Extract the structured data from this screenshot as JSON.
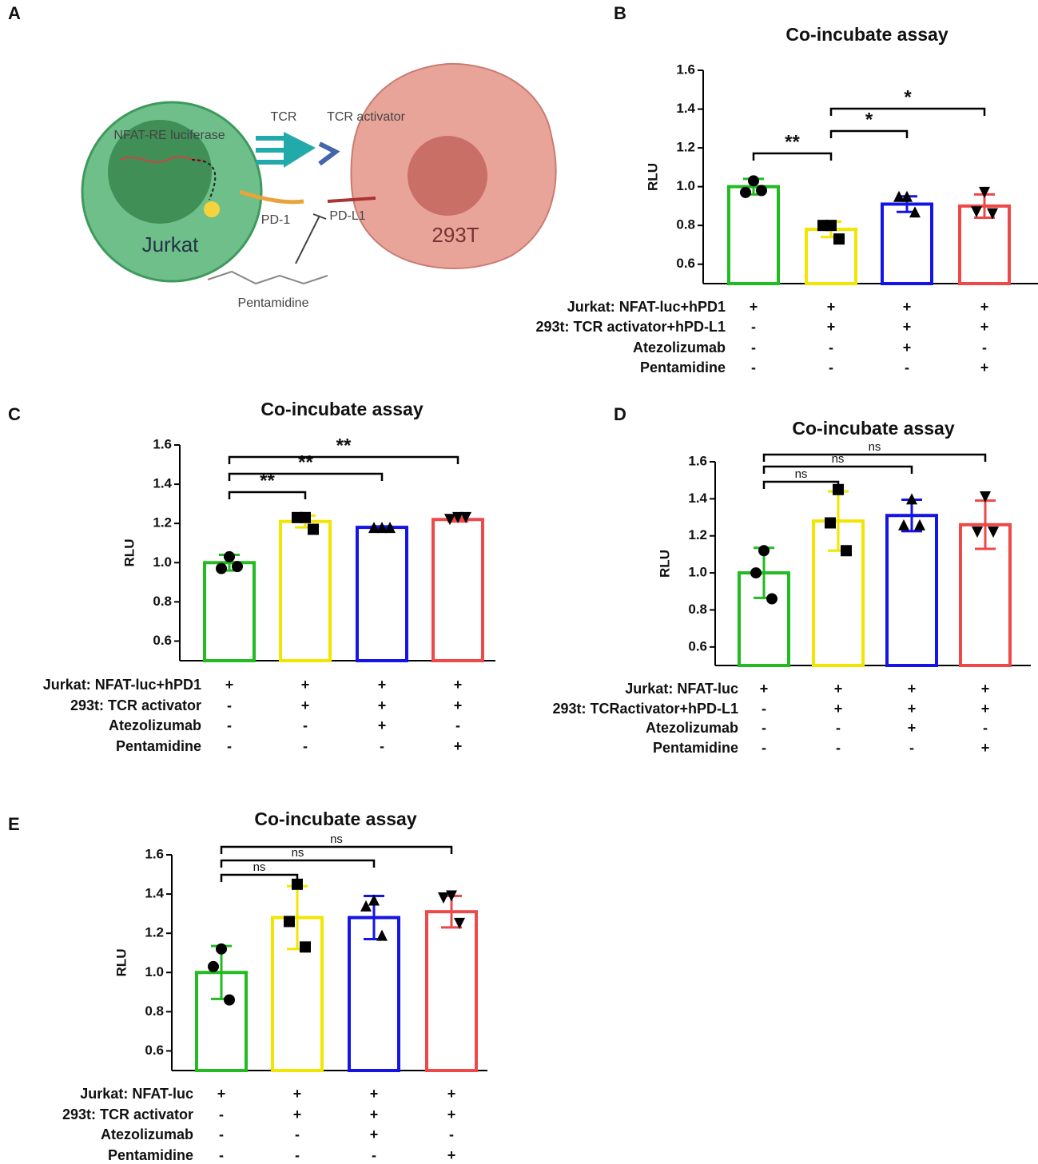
{
  "diagram": {
    "panel": "A",
    "labels": {
      "tcr": "TCR",
      "tcr_activator": "TCR activator",
      "luciferase": "NFAT-RE luciferase",
      "pd1": "PD-1",
      "pdl1": "PD-L1",
      "jurkat": "Jurkat",
      "cell293t": "293T",
      "drug": "Pentamidine"
    }
  },
  "chart_data": [
    {
      "type": "bar",
      "panel": "B",
      "title": "Co-incubate assay",
      "ylabel": "RLU",
      "ylim": [
        0.5,
        1.6
      ],
      "yticks": [
        0.6,
        0.8,
        {
          "value": 1,
          "label": "1.0"
        },
        1.2,
        1.4,
        1.6
      ],
      "colors": [
        "#22bb22",
        "#f2e600",
        "#1414e6",
        "#ee4848"
      ],
      "markers": [
        "circle",
        "square",
        "triangle",
        "triangle-down"
      ],
      "series": [
        {
          "values": [
            1.0,
            0.78,
            0.91,
            0.9
          ],
          "errors": [
            0.04,
            0.04,
            0.04,
            0.06
          ],
          "points": [
            [
              1.03,
              0.97,
              0.98
            ],
            [
              0.8,
              0.8,
              0.73
            ],
            [
              0.95,
              0.95,
              0.87
            ],
            [
              0.97,
              0.87,
              0.86
            ]
          ]
        }
      ],
      "significance": [
        {
          "bars": [
            0,
            1
          ],
          "label": "**"
        },
        {
          "bars": [
            1,
            2
          ],
          "label": "*"
        },
        {
          "bars": [
            1,
            3
          ],
          "label": "*"
        }
      ],
      "conditions": [
        {
          "label": "Jurkat: NFAT-luc+hPD1",
          "signs": [
            "+",
            "+",
            "+",
            "+"
          ]
        },
        {
          "label": "293t: TCR activator+hPD-L1",
          "signs": [
            "-",
            "+",
            "+",
            "+"
          ]
        },
        {
          "label": "Atezolizumab",
          "signs": [
            "-",
            "-",
            "+",
            "-"
          ]
        },
        {
          "label": "Pentamidine",
          "signs": [
            "-",
            "-",
            "-",
            "+"
          ]
        }
      ]
    },
    {
      "type": "bar",
      "panel": "C",
      "title": "Co-incubate assay",
      "ylabel": "RLU",
      "ylim": [
        0.5,
        1.6
      ],
      "yticks": [
        0.6,
        0.8,
        {
          "value": 1,
          "label": "1.0"
        },
        1.2,
        1.4,
        1.6
      ],
      "colors": [
        "#22bb22",
        "#f2e600",
        "#1414e6",
        "#ee4848"
      ],
      "markers": [
        "circle",
        "square",
        "triangle",
        "triangle-down"
      ],
      "series": [
        {
          "values": [
            1.0,
            1.21,
            1.18,
            1.22
          ],
          "errors": [
            0.04,
            0.03,
            0.005,
            0.01
          ],
          "points": [
            [
              1.03,
              0.97,
              0.98
            ],
            [
              1.23,
              1.23,
              1.17
            ],
            [
              1.18,
              1.18,
              1.18
            ],
            [
              1.23,
              1.22,
              1.23
            ]
          ]
        }
      ],
      "significance": [
        {
          "bars": [
            0,
            1
          ],
          "label": "**"
        },
        {
          "bars": [
            0,
            2
          ],
          "label": "**"
        },
        {
          "bars": [
            0,
            3
          ],
          "label": "**"
        }
      ],
      "conditions": [
        {
          "label": "Jurkat: NFAT-luc+hPD1",
          "signs": [
            "+",
            "+",
            "+",
            "+"
          ]
        },
        {
          "label": "293t: TCR activator",
          "signs": [
            "-",
            "+",
            "+",
            "+"
          ]
        },
        {
          "label": "Atezolizumab",
          "signs": [
            "-",
            "-",
            "+",
            "-"
          ]
        },
        {
          "label": "Pentamidine",
          "signs": [
            "-",
            "-",
            "-",
            "+"
          ]
        }
      ]
    },
    {
      "type": "bar",
      "panel": "D",
      "title": "Co-incubate assay",
      "ylabel": "RLU",
      "ylim": [
        0.5,
        1.6
      ],
      "yticks": [
        0.6,
        0.8,
        {
          "value": 1,
          "label": "1.0"
        },
        1.2,
        1.4,
        1.6
      ],
      "colors": [
        "#22bb22",
        "#f2e600",
        "#1414e6",
        "#ee4848"
      ],
      "markers": [
        "circle",
        "square",
        "triangle",
        "triangle-down"
      ],
      "series": [
        {
          "values": [
            1.0,
            1.28,
            1.31,
            1.26
          ],
          "errors": [
            0.135,
            0.16,
            0.085,
            0.13
          ],
          "points": [
            [
              1.12,
              1.0,
              0.86
            ],
            [
              1.45,
              1.27,
              1.12
            ],
            [
              1.4,
              1.26,
              1.26
            ],
            [
              1.41,
              1.22,
              1.22
            ]
          ]
        }
      ],
      "significance": [
        {
          "bars": [
            0,
            1
          ],
          "label": "ns"
        },
        {
          "bars": [
            0,
            2
          ],
          "label": "ns"
        },
        {
          "bars": [
            0,
            3
          ],
          "label": "ns"
        }
      ],
      "conditions": [
        {
          "label": "Jurkat: NFAT-luc",
          "signs": [
            "+",
            "+",
            "+",
            "+"
          ]
        },
        {
          "label": "293t: TCRactivator+hPD-L1",
          "signs": [
            "-",
            "+",
            "+",
            "+"
          ]
        },
        {
          "label": "Atezolizumab",
          "signs": [
            "-",
            "-",
            "+",
            "-"
          ]
        },
        {
          "label": "Pentamidine",
          "signs": [
            "-",
            "-",
            "-",
            "+"
          ]
        }
      ]
    },
    {
      "type": "bar",
      "panel": "E",
      "title": "Co-incubate assay",
      "ylabel": "RLU",
      "ylim": [
        0.5,
        1.6
      ],
      "yticks": [
        0.6,
        0.8,
        {
          "value": 1,
          "label": "1.0"
        },
        1.2,
        1.4,
        1.6
      ],
      "colors": [
        "#22bb22",
        "#f2e600",
        "#1414e6",
        "#ee4848"
      ],
      "markers": [
        "circle",
        "square",
        "triangle",
        "triangle-down"
      ],
      "series": [
        {
          "values": [
            1.0,
            1.28,
            1.28,
            1.31
          ],
          "errors": [
            0.135,
            0.16,
            0.11,
            0.08
          ],
          "points": [
            [
              1.12,
              1.03,
              0.86
            ],
            [
              1.45,
              1.26,
              1.13
            ],
            [
              1.37,
              1.34,
              1.19
            ],
            [
              1.39,
              1.38,
              1.25
            ]
          ]
        }
      ],
      "significance": [
        {
          "bars": [
            0,
            1
          ],
          "label": "ns"
        },
        {
          "bars": [
            0,
            2
          ],
          "label": "ns"
        },
        {
          "bars": [
            0,
            3
          ],
          "label": "ns"
        }
      ],
      "conditions": [
        {
          "label": "Jurkat: NFAT-luc",
          "signs": [
            "+",
            "+",
            "+",
            "+"
          ]
        },
        {
          "label": "293t: TCR activator",
          "signs": [
            "-",
            "+",
            "+",
            "+"
          ]
        },
        {
          "label": "Atezolizumab",
          "signs": [
            "-",
            "-",
            "+",
            "-"
          ]
        },
        {
          "label": "Pentamidine",
          "signs": [
            "-",
            "-",
            "-",
            "+"
          ]
        }
      ]
    }
  ]
}
